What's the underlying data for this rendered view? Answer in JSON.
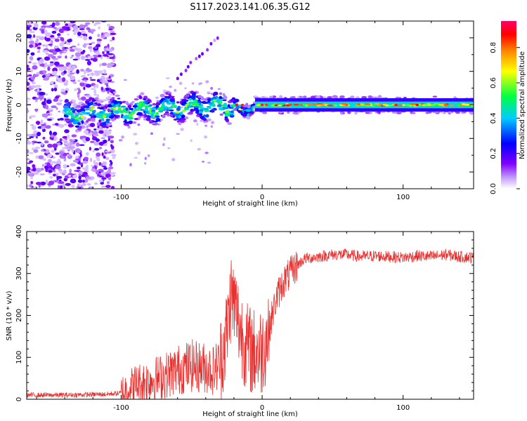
{
  "figure": {
    "title": "S117.2023.141.06.35.G12"
  },
  "colorbar": {
    "label": "Normalized spectral amplitude",
    "ticks": [
      "0.0",
      "0.2",
      "0.4",
      "0.6",
      "0.8"
    ]
  },
  "chart_data": [
    {
      "type": "heatmap",
      "title": "S117.2023.141.06.35.G12",
      "xlabel": "Height of straight line (km)",
      "ylabel": "Frequency (Hz)",
      "xlim": [
        -167,
        150
      ],
      "ylim": [
        -25,
        25
      ],
      "xticks": [
        -100,
        0,
        100
      ],
      "yticks": [
        -20,
        -10,
        0,
        10,
        20
      ],
      "colorbar": {
        "label": "Normalized spectral amplitude",
        "range": [
          0.0,
          0.95
        ],
        "colormap": "rainbow"
      },
      "features": {
        "noise_region_x": [
          -167,
          -105
        ],
        "scattered_region_x": [
          -105,
          -20
        ],
        "signal_line_freq_hz": 0,
        "diagonal_band": {
          "x_start": -60,
          "x_end": -32,
          "freq_start": 8,
          "freq_end": 20
        }
      }
    },
    {
      "type": "line",
      "xlabel": "Height of straight line (km)",
      "ylabel": "SNR (10 * v/v)",
      "xlim": [
        -167,
        150
      ],
      "ylim": [
        0,
        400
      ],
      "xticks": [
        -100,
        0,
        100
      ],
      "yticks": [
        0,
        100,
        200,
        300,
        400
      ],
      "series": [
        {
          "color": "#e8312f",
          "x": [
            -167,
            -140,
            -110,
            -100,
            -95,
            -90,
            -85,
            -80,
            -70,
            -60,
            -50,
            -40,
            -35,
            -30,
            -25,
            -22,
            -20,
            -15,
            -10,
            -5,
            0,
            5,
            10,
            15,
            20,
            25,
            30,
            40,
            50,
            60,
            70,
            80,
            90,
            100,
            110,
            120,
            130,
            140,
            150
          ],
          "y": [
            10,
            10,
            12,
            15,
            25,
            35,
            40,
            45,
            55,
            70,
            80,
            75,
            70,
            85,
            160,
            250,
            230,
            160,
            120,
            110,
            115,
            170,
            240,
            280,
            300,
            320,
            335,
            340,
            345,
            345,
            340,
            342,
            340,
            338,
            342,
            340,
            345,
            340,
            338
          ]
        }
      ]
    }
  ]
}
